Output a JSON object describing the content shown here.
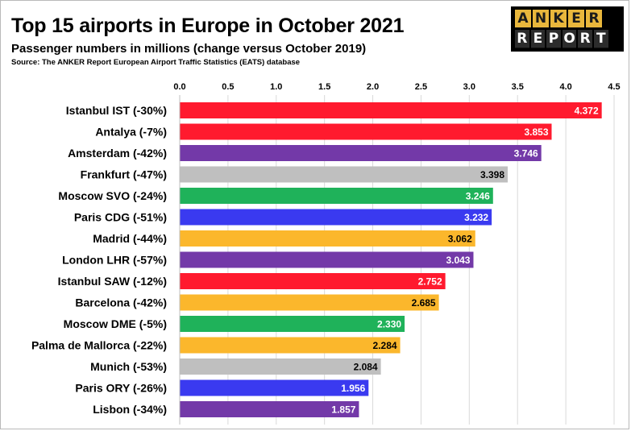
{
  "header": {
    "title": "Top 15 airports in Europe in October 2021",
    "subtitle": "Passenger numbers in millions (change versus October 2019)",
    "source": "Source: The ANKER Report European Airport Traffic Statistics (EATS) database"
  },
  "logo": {
    "top_letters": [
      "A",
      "N",
      "K",
      "E",
      "R"
    ],
    "bottom_letters": [
      "R",
      "E",
      "P",
      "O",
      "R",
      "T"
    ],
    "top_color": "#e9b73c",
    "bottom_color": "#2c2c2c"
  },
  "chart_data": {
    "type": "bar",
    "orientation": "horizontal",
    "title": "Top 15 airports in Europe in October 2021",
    "subtitle": "Passenger numbers in millions (change versus October 2019)",
    "xlim": [
      0,
      4.5
    ],
    "x_ticks": [
      "0.0",
      "0.5",
      "1.0",
      "1.5",
      "2.0",
      "2.5",
      "3.0",
      "3.5",
      "4.0",
      "4.5"
    ],
    "x_tick_values": [
      0,
      0.5,
      1,
      1.5,
      2,
      2.5,
      3,
      3.5,
      4,
      4.5
    ],
    "x_axis_position": "top",
    "grid": true,
    "categories": [
      "Istanbul IST (-30%)",
      "Antalya (-7%)",
      "Amsterdam (-42%)",
      "Frankfurt (-47%)",
      "Moscow SVO (-24%)",
      "Paris CDG (-51%)",
      "Madrid (-44%)",
      "London LHR (-57%)",
      "Istanbul SAW (-12%)",
      "Barcelona (-42%)",
      "Moscow DME (-5%)",
      "Palma de Mallorca (-22%)",
      "Munich (-53%)",
      "Paris ORY (-26%)",
      "Lisbon (-34%)"
    ],
    "values": [
      4.372,
      3.853,
      3.746,
      3.398,
      3.246,
      3.232,
      3.062,
      3.043,
      2.752,
      2.685,
      2.33,
      2.284,
      2.084,
      1.956,
      1.857
    ],
    "value_labels": [
      "4.372",
      "3.853",
      "3.746",
      "3.398",
      "3.246",
      "3.232",
      "3.062",
      "3.043",
      "2.752",
      "2.685",
      "2.330",
      "2.284",
      "2.084",
      "1.956",
      "1.857"
    ],
    "bar_colors": [
      "#ff1a2e",
      "#ff1a2e",
      "#7339a8",
      "#bfbfbf",
      "#1fb25a",
      "#3a3af0",
      "#fbb72c",
      "#7339a8",
      "#ff1a2e",
      "#fbb72c",
      "#1fb25a",
      "#fbb72c",
      "#bfbfbf",
      "#3a3af0",
      "#7339a8"
    ],
    "label_colors": [
      "#ffffff",
      "#ffffff",
      "#ffffff",
      "#000000",
      "#ffffff",
      "#ffffff",
      "#000000",
      "#ffffff",
      "#ffffff",
      "#000000",
      "#ffffff",
      "#000000",
      "#000000",
      "#ffffff",
      "#ffffff"
    ]
  }
}
